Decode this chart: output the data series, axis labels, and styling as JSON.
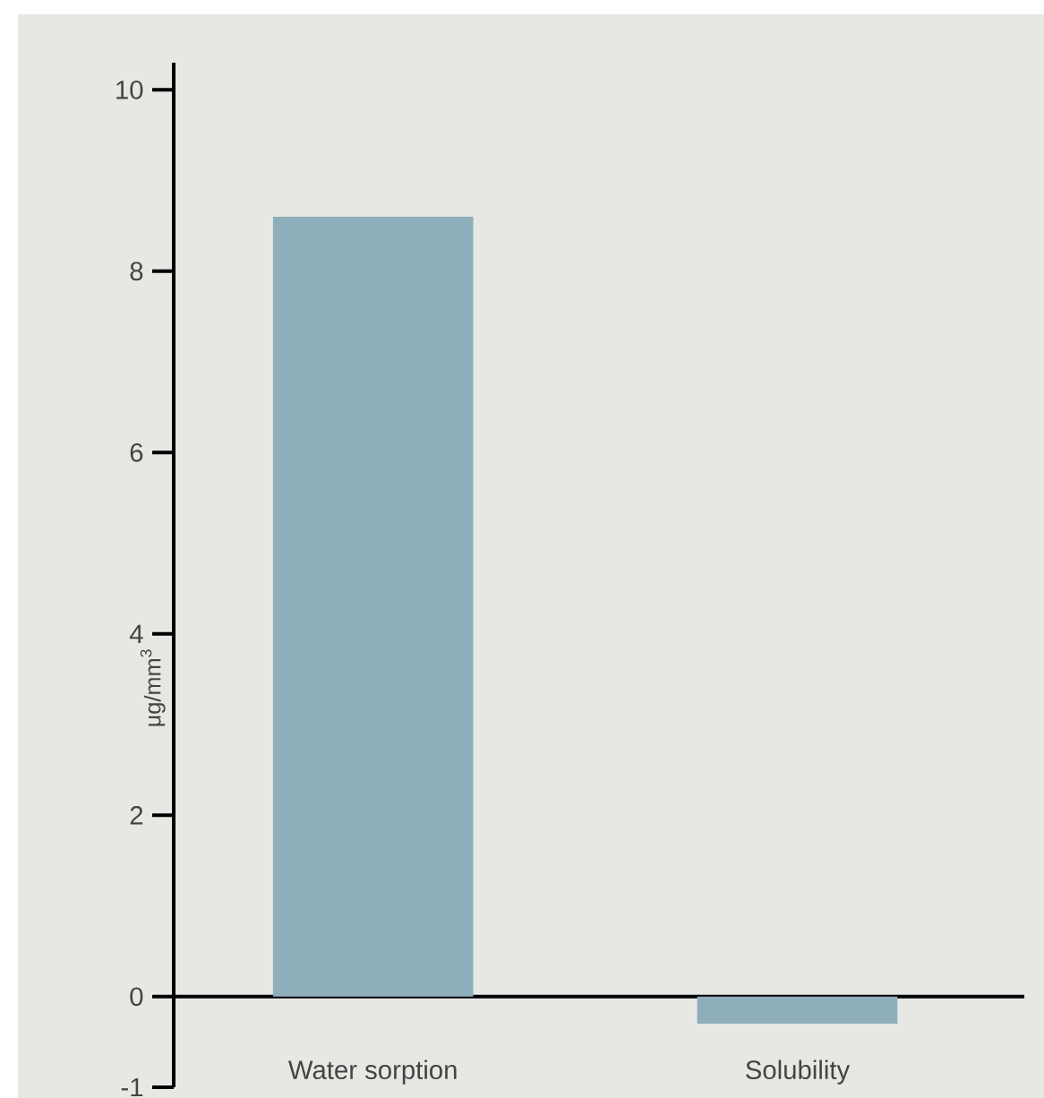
{
  "chart_data": {
    "type": "bar",
    "ylabel": "μg/mm$^{3}$",
    "categories": [
      "Water sorption",
      "Solubility"
    ],
    "values": [
      8.6,
      -0.3
    ],
    "color": "#8eaebb",
    "ylim": [
      -1,
      10.3
    ],
    "yticks": [
      -1,
      0,
      2,
      4,
      6,
      8,
      10
    ]
  }
}
